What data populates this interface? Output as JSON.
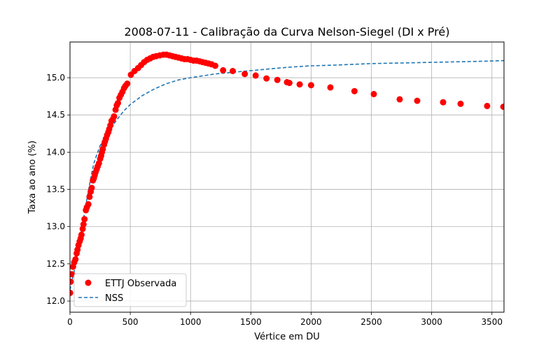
{
  "chart_data": {
    "type": "scatter",
    "title": "2008-07-11 - Calibração da Curva Nelson-Siegel (DI x Pré)",
    "xlabel": "Vértice em DU",
    "ylabel": "Taxa ao ano (%)",
    "xlim": [
      0,
      3600
    ],
    "ylim": [
      11.85,
      15.48
    ],
    "xticks": [
      0,
      500,
      1000,
      1500,
      2000,
      2500,
      3000,
      3500
    ],
    "yticks": [
      12.0,
      12.5,
      13.0,
      13.5,
      14.0,
      14.5,
      15.0
    ],
    "grid": true,
    "legend_position": "lower-left",
    "series": [
      {
        "name": "ETTJ Observada",
        "kind": "scatter",
        "color": "#ff0000",
        "points": [
          [
            1,
            12.11
          ],
          [
            5,
            12.26
          ],
          [
            15,
            12.36
          ],
          [
            25,
            12.46
          ],
          [
            35,
            12.52
          ],
          [
            45,
            12.56
          ],
          [
            55,
            12.64
          ],
          [
            62,
            12.69
          ],
          [
            70,
            12.75
          ],
          [
            80,
            12.8
          ],
          [
            88,
            12.84
          ],
          [
            95,
            12.89
          ],
          [
            105,
            12.97
          ],
          [
            112,
            13.03
          ],
          [
            120,
            13.1
          ],
          [
            132,
            13.22
          ],
          [
            140,
            13.26
          ],
          [
            152,
            13.3
          ],
          [
            162,
            13.4
          ],
          [
            172,
            13.47
          ],
          [
            180,
            13.52
          ],
          [
            190,
            13.62
          ],
          [
            198,
            13.65
          ],
          [
            205,
            13.69
          ],
          [
            212,
            13.73
          ],
          [
            222,
            13.77
          ],
          [
            230,
            13.81
          ],
          [
            240,
            13.85
          ],
          [
            250,
            13.91
          ],
          [
            258,
            13.95
          ],
          [
            265,
            14.0
          ],
          [
            272,
            14.04
          ],
          [
            282,
            14.1
          ],
          [
            290,
            14.14
          ],
          [
            298,
            14.18
          ],
          [
            308,
            14.23
          ],
          [
            318,
            14.27
          ],
          [
            325,
            14.31
          ],
          [
            335,
            14.36
          ],
          [
            345,
            14.42
          ],
          [
            355,
            14.44
          ],
          [
            365,
            14.48
          ],
          [
            378,
            14.57
          ],
          [
            388,
            14.63
          ],
          [
            398,
            14.66
          ],
          [
            410,
            14.73
          ],
          [
            422,
            14.77
          ],
          [
            435,
            14.81
          ],
          [
            448,
            14.86
          ],
          [
            460,
            14.89
          ],
          [
            475,
            14.92
          ],
          [
            505,
            15.04
          ],
          [
            535,
            15.09
          ],
          [
            565,
            15.13
          ],
          [
            590,
            15.17
          ],
          [
            615,
            15.21
          ],
          [
            640,
            15.24
          ],
          [
            665,
            15.26
          ],
          [
            690,
            15.28
          ],
          [
            715,
            15.29
          ],
          [
            745,
            15.3
          ],
          [
            775,
            15.31
          ],
          [
            800,
            15.31
          ],
          [
            825,
            15.3
          ],
          [
            850,
            15.29
          ],
          [
            875,
            15.28
          ],
          [
            900,
            15.27
          ],
          [
            925,
            15.26
          ],
          [
            950,
            15.25
          ],
          [
            975,
            15.25
          ],
          [
            1000,
            15.24
          ],
          [
            1025,
            15.23
          ],
          [
            1050,
            15.23
          ],
          [
            1075,
            15.22
          ],
          [
            1100,
            15.21
          ],
          [
            1125,
            15.2
          ],
          [
            1150,
            15.19
          ],
          [
            1175,
            15.18
          ],
          [
            1205,
            15.16
          ],
          [
            1270,
            15.1
          ],
          [
            1350,
            15.09
          ],
          [
            1450,
            15.05
          ],
          [
            1540,
            15.03
          ],
          [
            1630,
            14.99
          ],
          [
            1720,
            14.97
          ],
          [
            1800,
            14.94
          ],
          [
            1820,
            14.93
          ],
          [
            1905,
            14.91
          ],
          [
            2000,
            14.9
          ],
          [
            2160,
            14.87
          ],
          [
            2360,
            14.82
          ],
          [
            2520,
            14.78
          ],
          [
            2735,
            14.71
          ],
          [
            2880,
            14.69
          ],
          [
            3095,
            14.67
          ],
          [
            3240,
            14.65
          ],
          [
            3460,
            14.62
          ],
          [
            3595,
            14.61
          ]
        ]
      },
      {
        "name": "NSS",
        "kind": "line",
        "style": "dashed",
        "color": "#1f77b4",
        "points": [
          [
            0,
            12.15
          ],
          [
            20,
            12.29
          ],
          [
            40,
            12.44
          ],
          [
            60,
            12.61
          ],
          [
            80,
            12.79
          ],
          [
            100,
            12.98
          ],
          [
            120,
            13.18
          ],
          [
            140,
            13.37
          ],
          [
            160,
            13.55
          ],
          [
            180,
            13.72
          ],
          [
            200,
            13.86
          ],
          [
            225,
            13.98
          ],
          [
            250,
            14.09
          ],
          [
            300,
            14.23
          ],
          [
            350,
            14.35
          ],
          [
            400,
            14.46
          ],
          [
            450,
            14.56
          ],
          [
            500,
            14.64
          ],
          [
            600,
            14.76
          ],
          [
            700,
            14.85
          ],
          [
            800,
            14.92
          ],
          [
            900,
            14.97
          ],
          [
            1000,
            15.0
          ],
          [
            1200,
            15.05
          ],
          [
            1400,
            15.08
          ],
          [
            1600,
            15.11
          ],
          [
            1800,
            15.14
          ],
          [
            2000,
            15.16
          ],
          [
            2200,
            15.17
          ],
          [
            2500,
            15.19
          ],
          [
            2800,
            15.2
          ],
          [
            3100,
            15.21
          ],
          [
            3400,
            15.22
          ],
          [
            3600,
            15.23
          ]
        ]
      }
    ]
  }
}
